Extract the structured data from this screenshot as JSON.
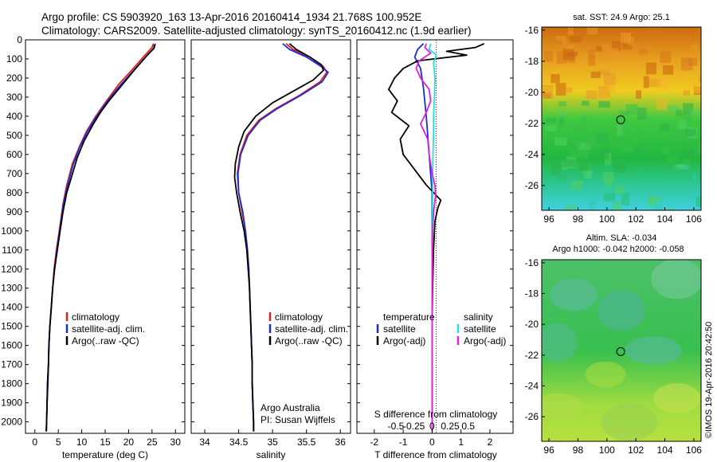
{
  "header": {
    "line1": "Argo profile: CS 5903920_163 13-Apr-2016 20160414_1934 21.768S 100.952E",
    "line2": "Climatology: CARS2009. Satellite-adjusted climatology: synTS_20160412.nc (1.9d earlier)"
  },
  "colors": {
    "climatology": "#e02020",
    "satellite": "#1b2bdc",
    "argo": "#000000",
    "sal_satellite": "#22e0e8",
    "sal_argo": "#e020e0"
  },
  "chart_data": [
    {
      "type": "line",
      "id": "temperature",
      "xlabel": "temperature (deg C)",
      "xlim": [
        -2,
        32
      ],
      "ylim": [
        2060,
        0
      ],
      "xticks": [
        0,
        5,
        10,
        15,
        20,
        25,
        30
      ],
      "yticks": [
        0,
        100,
        200,
        300,
        400,
        500,
        600,
        700,
        800,
        900,
        1000,
        1100,
        1200,
        1300,
        1400,
        1500,
        1600,
        1700,
        1800,
        1900,
        2000
      ],
      "legend": [
        "climatology",
        "satellite-adj. clim.",
        "Argo(..raw -QC)"
      ],
      "series": [
        {
          "name": "climatology",
          "color": "#e02020",
          "points": [
            [
              25.3,
              20
            ],
            [
              25,
              40
            ],
            [
              23.5,
              80
            ],
            [
              21,
              150
            ],
            [
              18,
              230
            ],
            [
              15,
              330
            ],
            [
              13,
              400
            ],
            [
              11,
              480
            ],
            [
              9.5,
              560
            ],
            [
              8,
              650
            ],
            [
              6.8,
              760
            ],
            [
              6,
              860
            ],
            [
              5.2,
              1000
            ],
            [
              4.6,
              1100
            ],
            [
              4.1,
              1200
            ],
            [
              3.8,
              1300
            ],
            [
              3.5,
              1400
            ],
            [
              3.2,
              1500
            ],
            [
              3,
              1600
            ],
            [
              2.9,
              1700
            ],
            [
              2.7,
              1800
            ],
            [
              2.6,
              1900
            ],
            [
              2.5,
              2000
            ],
            [
              2.4,
              2050
            ]
          ]
        },
        {
          "name": "satellite-adj. clim.",
          "color": "#1b2bdc",
          "points": [
            [
              25.7,
              20
            ],
            [
              25.5,
              40
            ],
            [
              24,
              80
            ],
            [
              21.5,
              150
            ],
            [
              18.5,
              230
            ],
            [
              15.2,
              330
            ],
            [
              13.2,
              400
            ],
            [
              11.2,
              480
            ],
            [
              9.6,
              560
            ],
            [
              8.2,
              650
            ],
            [
              7,
              760
            ],
            [
              6.1,
              860
            ],
            [
              5.3,
              1000
            ],
            [
              4.7,
              1100
            ],
            [
              4.2,
              1200
            ],
            [
              3.8,
              1300
            ],
            [
              3.5,
              1400
            ],
            [
              3.2,
              1500
            ],
            [
              3,
              1600
            ],
            [
              2.9,
              1700
            ],
            [
              2.8,
              1800
            ],
            [
              2.6,
              1900
            ],
            [
              2.5,
              2000
            ],
            [
              2.45,
              2050
            ]
          ]
        },
        {
          "name": "Argo(..raw -QC)",
          "color": "#000000",
          "points": [
            [
              25.5,
              25
            ],
            [
              25.4,
              45
            ],
            [
              24,
              80
            ],
            [
              21.5,
              150
            ],
            [
              18.8,
              230
            ],
            [
              15.8,
              320
            ],
            [
              14,
              380
            ],
            [
              12.5,
              440
            ],
            [
              10.5,
              530
            ],
            [
              9,
              620
            ],
            [
              7.8,
              720
            ],
            [
              6.8,
              800
            ],
            [
              6,
              900
            ],
            [
              5.4,
              1000
            ],
            [
              4.8,
              1100
            ],
            [
              4.2,
              1200
            ],
            [
              3.8,
              1300
            ],
            [
              3.5,
              1400
            ],
            [
              3.2,
              1500
            ],
            [
              3,
              1600
            ],
            [
              2.9,
              1700
            ],
            [
              2.7,
              1800
            ],
            [
              2.6,
              1900
            ],
            [
              2.5,
              2000
            ],
            [
              2.45,
              2050
            ]
          ]
        }
      ]
    },
    {
      "type": "line",
      "id": "salinity",
      "xlabel": "salinity",
      "xlim": [
        33.8,
        36.15
      ],
      "ylim": [
        2060,
        0
      ],
      "xticks": [
        34,
        34.5,
        35,
        35.5,
        36
      ],
      "legend": [
        "climatology",
        "satellite-adj. clim.",
        "Argo(..raw -QC)"
      ],
      "annotation": [
        "Argo Australia",
        "PI: Susan Wijffels"
      ],
      "series": [
        {
          "name": "climatology",
          "color": "#e02020",
          "points": [
            [
              35.2,
              20
            ],
            [
              35.3,
              50
            ],
            [
              35.55,
              90
            ],
            [
              35.75,
              140
            ],
            [
              35.8,
              170
            ],
            [
              35.7,
              220
            ],
            [
              35.4,
              290
            ],
            [
              35.05,
              360
            ],
            [
              34.8,
              420
            ],
            [
              34.62,
              500
            ],
            [
              34.52,
              600
            ],
            [
              34.48,
              700
            ],
            [
              34.5,
              800
            ],
            [
              34.55,
              900
            ],
            [
              34.6,
              1000
            ],
            [
              34.63,
              1100
            ],
            [
              34.65,
              1200
            ],
            [
              34.66,
              1300
            ],
            [
              34.67,
              1400
            ],
            [
              34.68,
              1500
            ],
            [
              34.69,
              1600
            ],
            [
              34.7,
              1700
            ],
            [
              34.7,
              1800
            ],
            [
              34.71,
              1900
            ],
            [
              34.72,
              2000
            ],
            [
              34.72,
              2050
            ]
          ]
        },
        {
          "name": "satellite-adj. clim.",
          "color": "#1b2bdc",
          "points": [
            [
              35.15,
              20
            ],
            [
              35.25,
              50
            ],
            [
              35.5,
              90
            ],
            [
              35.72,
              140
            ],
            [
              35.82,
              170
            ],
            [
              35.73,
              220
            ],
            [
              35.42,
              290
            ],
            [
              35.07,
              360
            ],
            [
              34.82,
              420
            ],
            [
              34.64,
              500
            ],
            [
              34.53,
              600
            ],
            [
              34.49,
              700
            ],
            [
              34.5,
              800
            ],
            [
              34.56,
              900
            ],
            [
              34.6,
              1000
            ],
            [
              34.63,
              1100
            ],
            [
              34.65,
              1200
            ],
            [
              34.66,
              1300
            ],
            [
              34.67,
              1400
            ],
            [
              34.68,
              1500
            ],
            [
              34.69,
              1600
            ],
            [
              34.7,
              1700
            ],
            [
              34.7,
              1800
            ],
            [
              34.71,
              1900
            ],
            [
              34.72,
              2000
            ],
            [
              34.72,
              2050
            ]
          ]
        },
        {
          "name": "Argo(..raw -QC)",
          "color": "#000000",
          "points": [
            [
              35.25,
              20
            ],
            [
              35.35,
              50
            ],
            [
              35.55,
              90
            ],
            [
              35.72,
              130
            ],
            [
              35.75,
              160
            ],
            [
              35.6,
              210
            ],
            [
              35.3,
              270
            ],
            [
              35.0,
              330
            ],
            [
              34.75,
              400
            ],
            [
              34.58,
              480
            ],
            [
              34.5,
              560
            ],
            [
              34.45,
              650
            ],
            [
              34.44,
              720
            ],
            [
              34.47,
              800
            ],
            [
              34.52,
              900
            ],
            [
              34.58,
              1000
            ],
            [
              34.62,
              1100
            ],
            [
              34.64,
              1200
            ],
            [
              34.66,
              1300
            ],
            [
              34.67,
              1400
            ],
            [
              34.68,
              1500
            ],
            [
              34.69,
              1600
            ],
            [
              34.7,
              1700
            ],
            [
              34.7,
              1800
            ],
            [
              34.71,
              1900
            ],
            [
              34.72,
              2000
            ],
            [
              34.72,
              2050
            ]
          ]
        }
      ]
    },
    {
      "type": "line",
      "id": "difference",
      "xlabel": "T difference from climatology",
      "xlabel2": "S difference from climatology",
      "xlim": [
        -2.6,
        2.8
      ],
      "ylim": [
        2060,
        0
      ],
      "xticks": [
        -2,
        -1,
        0,
        1,
        2
      ],
      "s_ticks": [
        -0.5,
        -0.25,
        0,
        0.25,
        0.5
      ],
      "legend_temperature": [
        "temperature",
        "satellite",
        "Argo(-adj)"
      ],
      "legend_salinity": [
        "salinity",
        "satellite",
        "Argo(-adj)"
      ],
      "series": [
        {
          "name": "temperature satellite",
          "color": "#1b2bdc",
          "points": [
            [
              -0.3,
              20
            ],
            [
              -0.5,
              50
            ],
            [
              -0.6,
              90
            ],
            [
              -0.4,
              150
            ],
            [
              -0.3,
              250
            ],
            [
              -0.2,
              400
            ],
            [
              -0.1,
              600
            ],
            [
              0,
              800
            ],
            [
              0,
              1000
            ],
            [
              0,
              1500
            ],
            [
              0,
              2050
            ]
          ]
        },
        {
          "name": "temperature Argo(-adj)",
          "color": "#000000",
          "points": [
            [
              1.8,
              20
            ],
            [
              1.5,
              40
            ],
            [
              0.5,
              60
            ],
            [
              1.2,
              80
            ],
            [
              -0.5,
              110
            ],
            [
              -1.0,
              150
            ],
            [
              -1.3,
              200
            ],
            [
              -1.5,
              260
            ],
            [
              -1.2,
              320
            ],
            [
              -1.4,
              380
            ],
            [
              -0.8,
              450
            ],
            [
              -1.1,
              520
            ],
            [
              -1.0,
              600
            ],
            [
              -0.6,
              680
            ],
            [
              -0.2,
              760
            ],
            [
              0.3,
              840
            ],
            [
              0.2,
              880
            ],
            [
              0.1,
              950
            ],
            [
              0.05,
              1100
            ],
            [
              0.02,
              1300
            ],
            [
              0,
              1500
            ],
            [
              0,
              2050
            ]
          ]
        },
        {
          "name": "salinity satellite",
          "color": "#22e0e8",
          "points": [
            [
              -0.05,
              20
            ],
            [
              -0.1,
              50
            ],
            [
              0.15,
              80
            ],
            [
              0.05,
              120
            ],
            [
              0.1,
              200
            ],
            [
              0.08,
              300
            ],
            [
              0.05,
              400
            ],
            [
              0.05,
              500
            ],
            [
              0.03,
              600
            ],
            [
              0.02,
              700
            ],
            [
              0.02,
              800
            ],
            [
              0.01,
              1000
            ],
            [
              0,
              2050
            ]
          ]
        },
        {
          "name": "salinity Argo(-adj)",
          "color": "#e020e0",
          "points": [
            [
              -0.2,
              20
            ],
            [
              -0.25,
              40
            ],
            [
              -0.05,
              70
            ],
            [
              -0.45,
              110
            ],
            [
              -0.55,
              150
            ],
            [
              -0.4,
              200
            ],
            [
              -0.1,
              260
            ],
            [
              -0.05,
              320
            ],
            [
              -0.2,
              380
            ],
            [
              -0.4,
              440
            ],
            [
              -0.15,
              520
            ],
            [
              -0.1,
              600
            ],
            [
              0,
              700
            ],
            [
              0.1,
              760
            ],
            [
              0.12,
              820
            ],
            [
              0.05,
              900
            ],
            [
              0.02,
              1000
            ],
            [
              0,
              1200
            ],
            [
              0,
              2050
            ]
          ]
        }
      ]
    },
    {
      "type": "heatmap",
      "id": "sst",
      "title": "sat. SST: 24.9 Argo: 25.1",
      "xlim": [
        95.5,
        106.5
      ],
      "ylim": [
        -27.6,
        -15.8
      ],
      "xticks": [
        96,
        98,
        100,
        102,
        104,
        106
      ],
      "yticks": [
        -16,
        -18,
        -20,
        -22,
        -24,
        -26
      ],
      "marker": [
        100.95,
        -21.77
      ]
    },
    {
      "type": "heatmap",
      "id": "sla",
      "title": "Altim. SLA: -0.034",
      "subtitle": "Argo h1000: -0.042 h2000: -0.058",
      "xlim": [
        95.5,
        106.5
      ],
      "ylim": [
        -27.6,
        -15.8
      ],
      "xticks": [
        96,
        98,
        100,
        102,
        104,
        106
      ],
      "yticks": [
        -16,
        -18,
        -20,
        -22,
        -24,
        -26
      ],
      "marker": [
        100.95,
        -21.77
      ]
    }
  ],
  "footer": {
    "credit": "©IMOS 19-Apr-2016 20:42:50"
  }
}
